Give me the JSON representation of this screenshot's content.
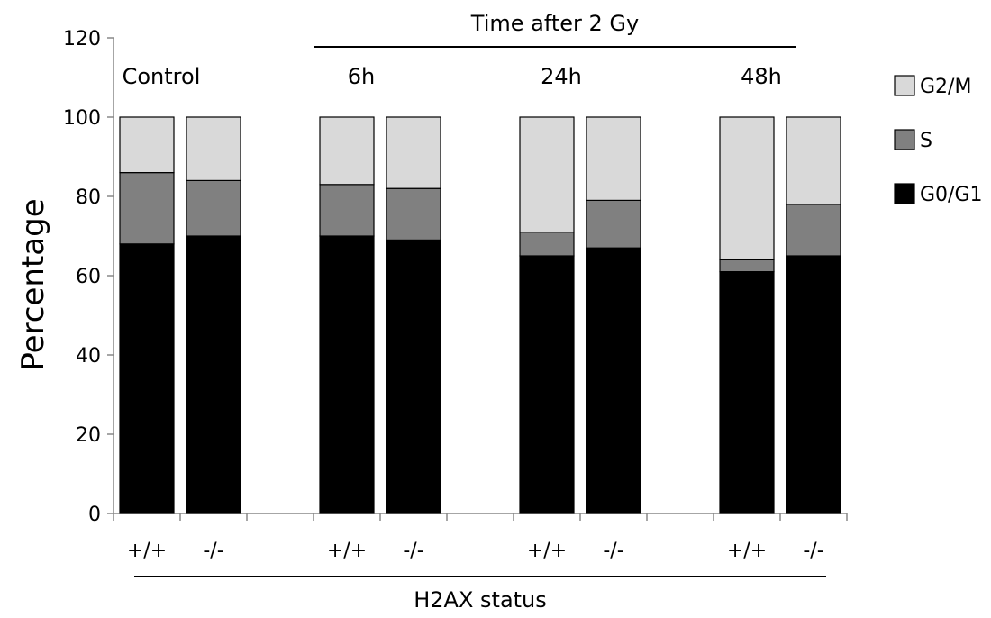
{
  "chart_data": {
    "type": "bar",
    "stacked": true,
    "ylabel": "Percentage",
    "ylim": [
      0,
      120
    ],
    "yticks": [
      0,
      20,
      40,
      60,
      80,
      100,
      120
    ],
    "categories": [
      "+/+",
      "-/-",
      "+/+",
      "-/-",
      "+/+",
      "-/-",
      "+/+",
      "-/-"
    ],
    "groups": [
      {
        "label": "Control",
        "categories": [
          0,
          1
        ]
      },
      {
        "label": "6h",
        "categories": [
          2,
          3
        ]
      },
      {
        "label": "24h",
        "categories": [
          4,
          5
        ]
      },
      {
        "label": "48h",
        "categories": [
          6,
          7
        ]
      }
    ],
    "series": [
      {
        "name": "G0/G1",
        "color": "#000000",
        "values": [
          68,
          70,
          70,
          69,
          65,
          67,
          61,
          65
        ]
      },
      {
        "name": "S",
        "color": "#808080",
        "values": [
          18,
          14,
          13,
          13,
          6,
          12,
          3,
          13
        ]
      },
      {
        "name": "G2/M",
        "color": "#d9d9d9",
        "values": [
          14,
          16,
          17,
          18,
          29,
          21,
          36,
          22
        ]
      }
    ],
    "legend_order": [
      "G2/M",
      "S",
      "G0/G1"
    ],
    "legend_position": "right",
    "header_annotation": "Time after 2 Gy",
    "footer_annotation": "H2AX status",
    "grid": false
  }
}
